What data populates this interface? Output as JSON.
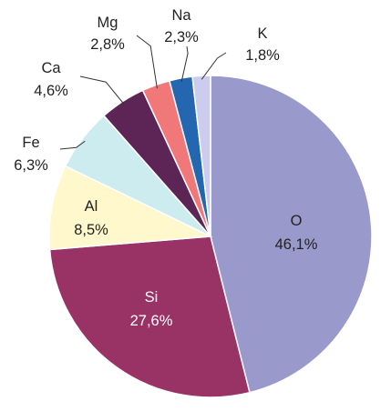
{
  "chart_data": {
    "type": "pie",
    "title": "",
    "slices": [
      {
        "element": "O",
        "value_label": "46,1%",
        "value": 46.1,
        "color": "#9999cc"
      },
      {
        "element": "Si",
        "value_label": "27,6%",
        "value": 27.6,
        "color": "#993366"
      },
      {
        "element": "Al",
        "value_label": "8,5%",
        "value": 8.5,
        "color": "#fff8cc"
      },
      {
        "element": "Fe",
        "value_label": "6,3%",
        "value": 6.3,
        "color": "#ccecf0"
      },
      {
        "element": "Ca",
        "value_label": "4,6%",
        "value": 4.6,
        "color": "#5c2556"
      },
      {
        "element": "Mg",
        "value_label": "2,8%",
        "value": 2.8,
        "color": "#f07878"
      },
      {
        "element": "Na",
        "value_label": "2,3%",
        "value": 2.3,
        "color": "#2466b0"
      },
      {
        "element": "K",
        "value_label": "1,8%",
        "value": 1.8,
        "color": "#ccccee"
      }
    ],
    "start_angle_deg": 0,
    "direction": "clockwise",
    "legend": "none"
  }
}
